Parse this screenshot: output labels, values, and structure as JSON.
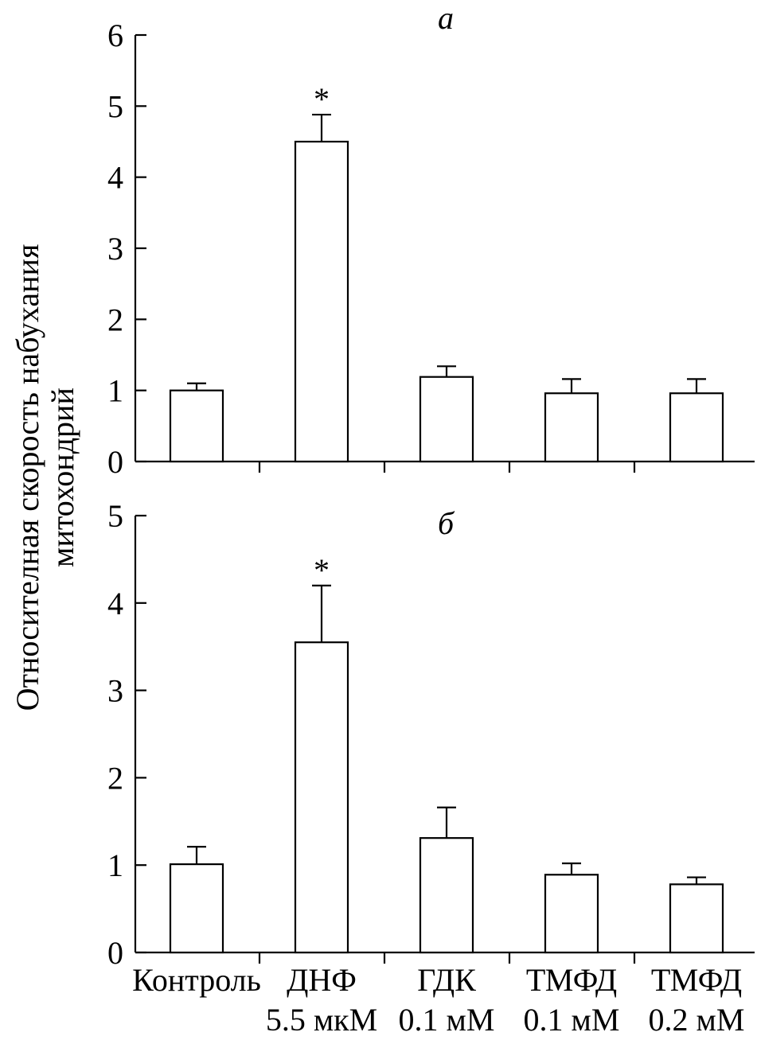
{
  "y_axis_title": {
    "line1": "Относителная скорость набухания",
    "line2": "митохондрий"
  },
  "x_category_labels": [
    {
      "line1": "Контроль",
      "line2": ""
    },
    {
      "line1": "ДНФ",
      "line2": "5.5 мкМ"
    },
    {
      "line1": "ГДК",
      "line2": "0.1 мМ"
    },
    {
      "line1": "ТМФД",
      "line2": "0.1 мМ"
    },
    {
      "line1": "ТМФД",
      "line2": "0.2 мМ"
    }
  ],
  "chart_data": [
    {
      "type": "bar",
      "panel_label": "а",
      "categories": [
        "Контроль",
        "ДНФ 5.5 мкМ",
        "ГДК 0.1 мМ",
        "ТМФД 0.1 мМ",
        "ТМФД 0.2 мМ"
      ],
      "values": [
        1.0,
        4.5,
        1.19,
        0.96,
        0.96
      ],
      "error_up": [
        0.1,
        0.38,
        0.15,
        0.2,
        0.2
      ],
      "significance": [
        "",
        "*",
        "",
        "",
        ""
      ],
      "ylim": [
        0,
        6
      ],
      "yticks": [
        "0",
        "1",
        "2",
        "3",
        "4",
        "5",
        "6"
      ],
      "grid": false,
      "bar_fill": "#ffffff",
      "bar_stroke": "#000000"
    },
    {
      "type": "bar",
      "panel_label": "б",
      "categories": [
        "Контроль",
        "ДНФ 5.5 мкМ",
        "ГДК 0.1 мМ",
        "ТМФД 0.1 мМ",
        "ТМФД 0.2 мМ"
      ],
      "values": [
        1.01,
        3.55,
        1.31,
        0.89,
        0.78
      ],
      "error_up": [
        0.2,
        0.65,
        0.35,
        0.13,
        0.08
      ],
      "significance": [
        "",
        "*",
        "",
        "",
        ""
      ],
      "ylim": [
        0,
        5
      ],
      "yticks": [
        "0",
        "1",
        "2",
        "3",
        "4",
        "5"
      ],
      "grid": false,
      "bar_fill": "#ffffff",
      "bar_stroke": "#000000"
    }
  ]
}
